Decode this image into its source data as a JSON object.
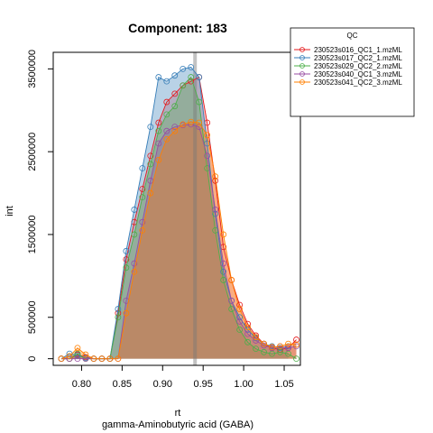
{
  "chart_data": {
    "type": "area",
    "title": "Component: 183",
    "xlabel": "rt",
    "sublabel": "gamma-Aminobutyric acid (GABA)",
    "ylabel": "int",
    "xlim": [
      0.765,
      1.07
    ],
    "ylim": [
      -80000,
      3700000
    ],
    "xticks": [
      0.8,
      0.85,
      0.9,
      0.95,
      1.0,
      1.05
    ],
    "xtick_labels": [
      "0.80",
      "0.85",
      "0.90",
      "0.95",
      "1.00",
      "1.05"
    ],
    "yticks": [
      0,
      500000,
      1500000,
      2500000,
      3500000
    ],
    "ytick_labels": [
      "0",
      "500000",
      "1500000",
      "2500000",
      "3500000"
    ],
    "marker_line": {
      "x": 0.94
    },
    "legend": {
      "title": "QC",
      "placement": "top-right"
    },
    "series": [
      {
        "name": "230523s016_QC1_1.mzML",
        "color": "#e41a1c",
        "fill": "rgba(228,26,28,0.25)",
        "x": [
          0.775,
          0.785,
          0.795,
          0.805,
          0.815,
          0.825,
          0.835,
          0.845,
          0.855,
          0.865,
          0.875,
          0.885,
          0.895,
          0.905,
          0.915,
          0.925,
          0.935,
          0.945,
          0.955,
          0.965,
          0.975,
          0.985,
          0.995,
          1.005,
          1.015,
          1.025,
          1.035,
          1.045,
          1.055,
          1.065
        ],
        "y": [
          0,
          0,
          50000,
          20000,
          0,
          0,
          0,
          550000,
          1200000,
          1650000,
          2050000,
          2450000,
          2850000,
          3100000,
          3200000,
          3300000,
          3350000,
          3400000,
          2850000,
          2150000,
          1350000,
          950000,
          650000,
          420000,
          280000,
          180000,
          130000,
          110000,
          130000,
          230000
        ]
      },
      {
        "name": "230523s017_QC2_1.mzML",
        "color": "#377eb8",
        "fill": "rgba(55,126,184,0.35)",
        "x": [
          0.775,
          0.785,
          0.795,
          0.805,
          0.815,
          0.825,
          0.835,
          0.845,
          0.855,
          0.865,
          0.875,
          0.885,
          0.895,
          0.905,
          0.915,
          0.925,
          0.935,
          0.945,
          0.955,
          0.965,
          0.975,
          0.985,
          0.995,
          1.005,
          1.015,
          1.025,
          1.035,
          1.045,
          1.055
        ],
        "y": [
          0,
          60000,
          40000,
          10000,
          0,
          0,
          0,
          600000,
          1300000,
          1800000,
          2300000,
          2800000,
          3400000,
          3350000,
          3420000,
          3500000,
          3520000,
          3400000,
          2600000,
          1750000,
          1050000,
          700000,
          500000,
          350000,
          250000,
          180000,
          150000,
          130000,
          150000
        ]
      },
      {
        "name": "230523s029_QC2_2.mzML",
        "color": "#4daf4a",
        "fill": "rgba(77,175,74,0.30)",
        "x": [
          0.775,
          0.785,
          0.795,
          0.805,
          0.815,
          0.825,
          0.835,
          0.845,
          0.855,
          0.865,
          0.875,
          0.885,
          0.895,
          0.905,
          0.915,
          0.925,
          0.935,
          0.945,
          0.955,
          0.965,
          0.975,
          0.985,
          0.995,
          1.005,
          1.015,
          1.025,
          1.035,
          1.045,
          1.055,
          1.065
        ],
        "y": [
          0,
          0,
          60000,
          0,
          0,
          0,
          0,
          500000,
          1100000,
          1500000,
          1950000,
          2350000,
          2750000,
          2950000,
          3050000,
          3300000,
          3400000,
          3100000,
          2300000,
          1550000,
          950000,
          600000,
          350000,
          200000,
          120000,
          80000,
          60000,
          80000,
          60000,
          0
        ]
      },
      {
        "name": "230523s040_QC1_3.mzML",
        "color": "#984ea3",
        "fill": "rgba(152,78,163,0.30)",
        "x": [
          0.775,
          0.785,
          0.795,
          0.805,
          0.815,
          0.825,
          0.835,
          0.845,
          0.855,
          0.865,
          0.875,
          0.885,
          0.895,
          0.905,
          0.915,
          0.925,
          0.935,
          0.945,
          0.955,
          0.965,
          0.975,
          0.985,
          0.995,
          1.005,
          1.015,
          1.025,
          1.035,
          1.045,
          1.055,
          1.065
        ],
        "y": [
          0,
          0,
          0,
          0,
          0,
          0,
          0,
          0,
          700000,
          1150000,
          1650000,
          2150000,
          2600000,
          2750000,
          2800000,
          2820000,
          2830000,
          2800000,
          2450000,
          1800000,
          1150000,
          700000,
          450000,
          300000,
          220000,
          160000,
          130000,
          150000,
          130000,
          150000
        ]
      },
      {
        "name": "230523s041_QC2_3.mzML",
        "color": "#ff7f00",
        "fill": "rgba(255,127,0,0.35)",
        "x": [
          0.775,
          0.785,
          0.795,
          0.805,
          0.815,
          0.825,
          0.835,
          0.845,
          0.855,
          0.865,
          0.875,
          0.885,
          0.895,
          0.905,
          0.915,
          0.925,
          0.935,
          0.945,
          0.955,
          0.965,
          0.975,
          0.985,
          0.995,
          1.005,
          1.015,
          1.025,
          1.035,
          1.045,
          1.055,
          1.065
        ],
        "y": [
          0,
          30000,
          130000,
          50000,
          0,
          0,
          0,
          0,
          550000,
          1050000,
          1550000,
          2000000,
          2400000,
          2650000,
          2750000,
          2830000,
          2860000,
          2850000,
          2700000,
          2200000,
          1500000,
          950000,
          600000,
          380000,
          260000,
          180000,
          140000,
          150000,
          180000,
          170000
        ]
      }
    ]
  }
}
